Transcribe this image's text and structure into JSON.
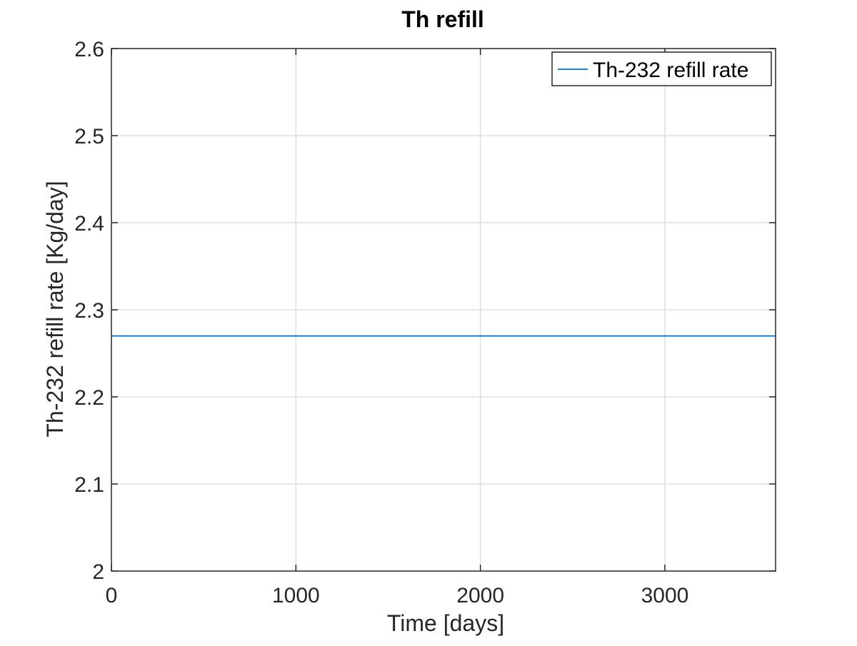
{
  "chart_data": {
    "type": "line",
    "title": "Th refill",
    "xlabel": "Time [days]",
    "ylabel": "Th-232 refill rate [Kg/day]",
    "xlim": [
      0,
      3600
    ],
    "ylim": [
      2,
      2.6
    ],
    "xticks": [
      0,
      1000,
      2000,
      3000
    ],
    "xtick_labels": [
      "0",
      "1000",
      "2000",
      "3000"
    ],
    "yticks": [
      2,
      2.1,
      2.2,
      2.3,
      2.4,
      2.5,
      2.6
    ],
    "ytick_labels": [
      "2",
      "2.1",
      "2.2",
      "2.3",
      "2.4",
      "2.5",
      "2.6"
    ],
    "grid": true,
    "legend_position": "top-right",
    "series": [
      {
        "name": "Th-232 refill rate",
        "color": "#0072bd",
        "x": [
          0,
          3600
        ],
        "y": [
          2.27,
          2.27
        ]
      }
    ]
  }
}
